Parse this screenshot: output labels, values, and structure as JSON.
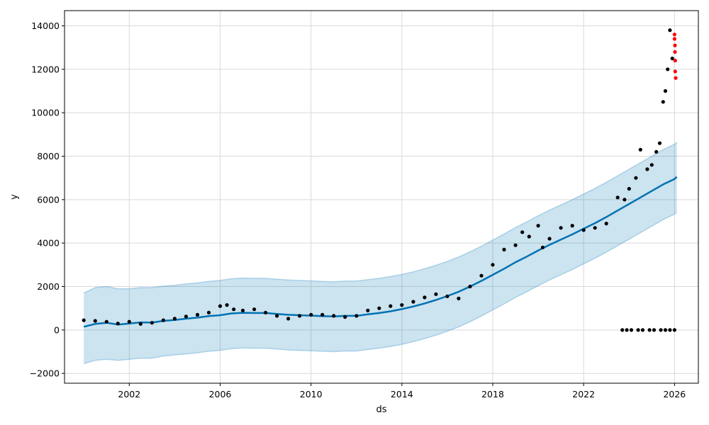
{
  "chart_data": {
    "type": "line",
    "title": "",
    "xlabel": "ds",
    "ylabel": "y",
    "grid": true,
    "xlim": [
      1999.15,
      2027.05
    ],
    "ylim": [
      -2450,
      14700
    ],
    "x_ticks": [
      2002,
      2006,
      2010,
      2014,
      2018,
      2022,
      2026
    ],
    "x_tick_labels": [
      "2002",
      "2006",
      "2010",
      "2014",
      "2018",
      "2022",
      "2026"
    ],
    "y_ticks": [
      -2000,
      0,
      2000,
      4000,
      6000,
      8000,
      10000,
      12000,
      14000
    ],
    "y_tick_labels": [
      "−2000",
      "0",
      "2000",
      "4000",
      "6000",
      "8000",
      "10000",
      "12000",
      "14000"
    ],
    "colors": {
      "forecast": "#0072b2",
      "uncertainty": "#0072b2",
      "actual": "#000000",
      "outlier": "#ff0000",
      "grid": "#d9d9d9"
    },
    "series": [
      {
        "role": "forecast",
        "style": "line",
        "x": [
          2000.0,
          2000.5,
          2001.0,
          2001.5,
          2002.0,
          2002.5,
          2003.0,
          2003.5,
          2004.0,
          2004.5,
          2005.0,
          2005.5,
          2006.0,
          2006.5,
          2007.0,
          2007.5,
          2008.0,
          2008.5,
          2009.0,
          2009.5,
          2010.0,
          2010.5,
          2011.0,
          2011.5,
          2012.0,
          2012.5,
          2013.0,
          2013.5,
          2014.0,
          2014.5,
          2015.0,
          2015.5,
          2016.0,
          2016.5,
          2017.0,
          2017.5,
          2018.0,
          2018.5,
          2019.0,
          2019.5,
          2020.0,
          2020.5,
          2021.0,
          2021.5,
          2022.0,
          2022.5,
          2023.0,
          2023.5,
          2024.0,
          2024.5,
          2025.0,
          2025.5,
          2026.0,
          2026.1
        ],
        "y": [
          150,
          280,
          330,
          250,
          300,
          350,
          340,
          420,
          460,
          520,
          570,
          640,
          680,
          760,
          790,
          780,
          780,
          740,
          700,
          680,
          660,
          640,
          620,
          650,
          650,
          720,
          780,
          860,
          960,
          1080,
          1220,
          1380,
          1560,
          1760,
          2000,
          2260,
          2540,
          2820,
          3120,
          3380,
          3660,
          3920,
          4160,
          4400,
          4660,
          4920,
          5200,
          5500,
          5800,
          6100,
          6400,
          6700,
          6950,
          7050
        ]
      },
      {
        "role": "uncertainty_upper",
        "style": "band",
        "x": [
          2000.0,
          2000.5,
          2001.0,
          2001.5,
          2002.0,
          2002.5,
          2003.0,
          2003.5,
          2004.0,
          2004.5,
          2005.0,
          2005.5,
          2006.0,
          2006.5,
          2007.0,
          2007.5,
          2008.0,
          2008.5,
          2009.0,
          2009.5,
          2010.0,
          2010.5,
          2011.0,
          2011.5,
          2012.0,
          2012.5,
          2013.0,
          2013.5,
          2014.0,
          2014.5,
          2015.0,
          2015.5,
          2016.0,
          2016.5,
          2017.0,
          2017.5,
          2018.0,
          2018.5,
          2019.0,
          2019.5,
          2020.0,
          2020.5,
          2021.0,
          2021.5,
          2022.0,
          2022.5,
          2023.0,
          2023.5,
          2024.0,
          2024.5,
          2025.0,
          2025.5,
          2026.0,
          2026.1
        ],
        "y": [
          1700,
          1950,
          2000,
          1900,
          1900,
          1950,
          1950,
          2020,
          2060,
          2120,
          2170,
          2240,
          2280,
          2360,
          2390,
          2380,
          2380,
          2340,
          2300,
          2280,
          2260,
          2240,
          2220,
          2250,
          2250,
          2320,
          2380,
          2460,
          2560,
          2680,
          2820,
          2980,
          3160,
          3360,
          3600,
          3860,
          4140,
          4420,
          4720,
          4980,
          5260,
          5520,
          5760,
          6000,
          6260,
          6520,
          6800,
          7100,
          7400,
          7700,
          8000,
          8300,
          8550,
          8650
        ]
      },
      {
        "role": "uncertainty_lower",
        "style": "band",
        "x": [
          2000.0,
          2000.5,
          2001.0,
          2001.5,
          2002.0,
          2002.5,
          2003.0,
          2003.5,
          2004.0,
          2004.5,
          2005.0,
          2005.5,
          2006.0,
          2006.5,
          2007.0,
          2007.5,
          2008.0,
          2008.5,
          2009.0,
          2009.5,
          2010.0,
          2010.5,
          2011.0,
          2011.5,
          2012.0,
          2012.5,
          2013.0,
          2013.5,
          2014.0,
          2014.5,
          2015.0,
          2015.5,
          2016.0,
          2016.5,
          2017.0,
          2017.5,
          2018.0,
          2018.5,
          2019.0,
          2019.5,
          2020.0,
          2020.5,
          2021.0,
          2021.5,
          2022.0,
          2022.5,
          2023.0,
          2023.5,
          2024.0,
          2024.5,
          2025.0,
          2025.5,
          2026.0,
          2026.1
        ],
        "y": [
          -1550,
          -1400,
          -1350,
          -1400,
          -1350,
          -1300,
          -1300,
          -1200,
          -1150,
          -1100,
          -1050,
          -980,
          -940,
          -860,
          -830,
          -840,
          -840,
          -880,
          -920,
          -940,
          -960,
          -980,
          -1000,
          -970,
          -970,
          -900,
          -840,
          -760,
          -660,
          -540,
          -400,
          -240,
          -60,
          140,
          380,
          640,
          920,
          1200,
          1500,
          1760,
          2040,
          2300,
          2540,
          2780,
          3040,
          3300,
          3580,
          3880,
          4180,
          4480,
          4780,
          5080,
          5330,
          5430
        ]
      },
      {
        "role": "actual",
        "style": "points",
        "x": [
          2000.0,
          2000.5,
          2001.0,
          2001.5,
          2002.0,
          2002.5,
          2003.0,
          2003.5,
          2004.0,
          2004.5,
          2005.0,
          2005.5,
          2006.0,
          2006.3,
          2006.6,
          2007.0,
          2007.5,
          2008.0,
          2008.5,
          2009.0,
          2009.5,
          2010.0,
          2010.5,
          2011.0,
          2011.5,
          2012.0,
          2012.5,
          2013.0,
          2013.5,
          2014.0,
          2014.5,
          2015.0,
          2015.5,
          2016.0,
          2016.5,
          2017.0,
          2017.5,
          2018.0,
          2018.5,
          2019.0,
          2019.3,
          2019.6,
          2020.0,
          2020.2,
          2020.5,
          2021.0,
          2021.5,
          2022.0,
          2022.5,
          2023.0,
          2023.5,
          2023.8,
          2024.0,
          2024.3,
          2024.5,
          2024.8,
          2025.0,
          2025.2,
          2025.35,
          2025.5,
          2025.6,
          2025.7,
          2025.8,
          2025.9
        ],
        "y": [
          450,
          420,
          380,
          300,
          380,
          280,
          330,
          450,
          520,
          620,
          700,
          800,
          1100,
          1150,
          950,
          900,
          950,
          800,
          650,
          520,
          650,
          700,
          700,
          650,
          600,
          650,
          900,
          1000,
          1100,
          1150,
          1300,
          1500,
          1650,
          1550,
          1450,
          2000,
          2500,
          3000,
          3700,
          3900,
          4500,
          4300,
          4800,
          3800,
          4200,
          4700,
          4800,
          4600,
          4700,
          4900,
          6100,
          6000,
          6500,
          7000,
          8300,
          7400,
          7600,
          8200,
          8600,
          10500,
          11000,
          12000,
          13800,
          12500
        ]
      },
      {
        "role": "outlier",
        "style": "points",
        "x": [
          2026.0,
          2026.0,
          2026.02,
          2026.02,
          2026.03,
          2026.03,
          2026.05
        ],
        "y": [
          13600,
          13400,
          13100,
          12800,
          12400,
          11900,
          11600
        ]
      },
      {
        "role": "actual_zero",
        "style": "points",
        "x": [
          2023.7,
          2023.9,
          2024.1,
          2024.4,
          2024.6,
          2024.9,
          2025.1,
          2025.4,
          2025.6,
          2025.8,
          2026.0
        ],
        "y": [
          0,
          0,
          0,
          0,
          0,
          0,
          0,
          0,
          0,
          0,
          0
        ]
      }
    ]
  }
}
